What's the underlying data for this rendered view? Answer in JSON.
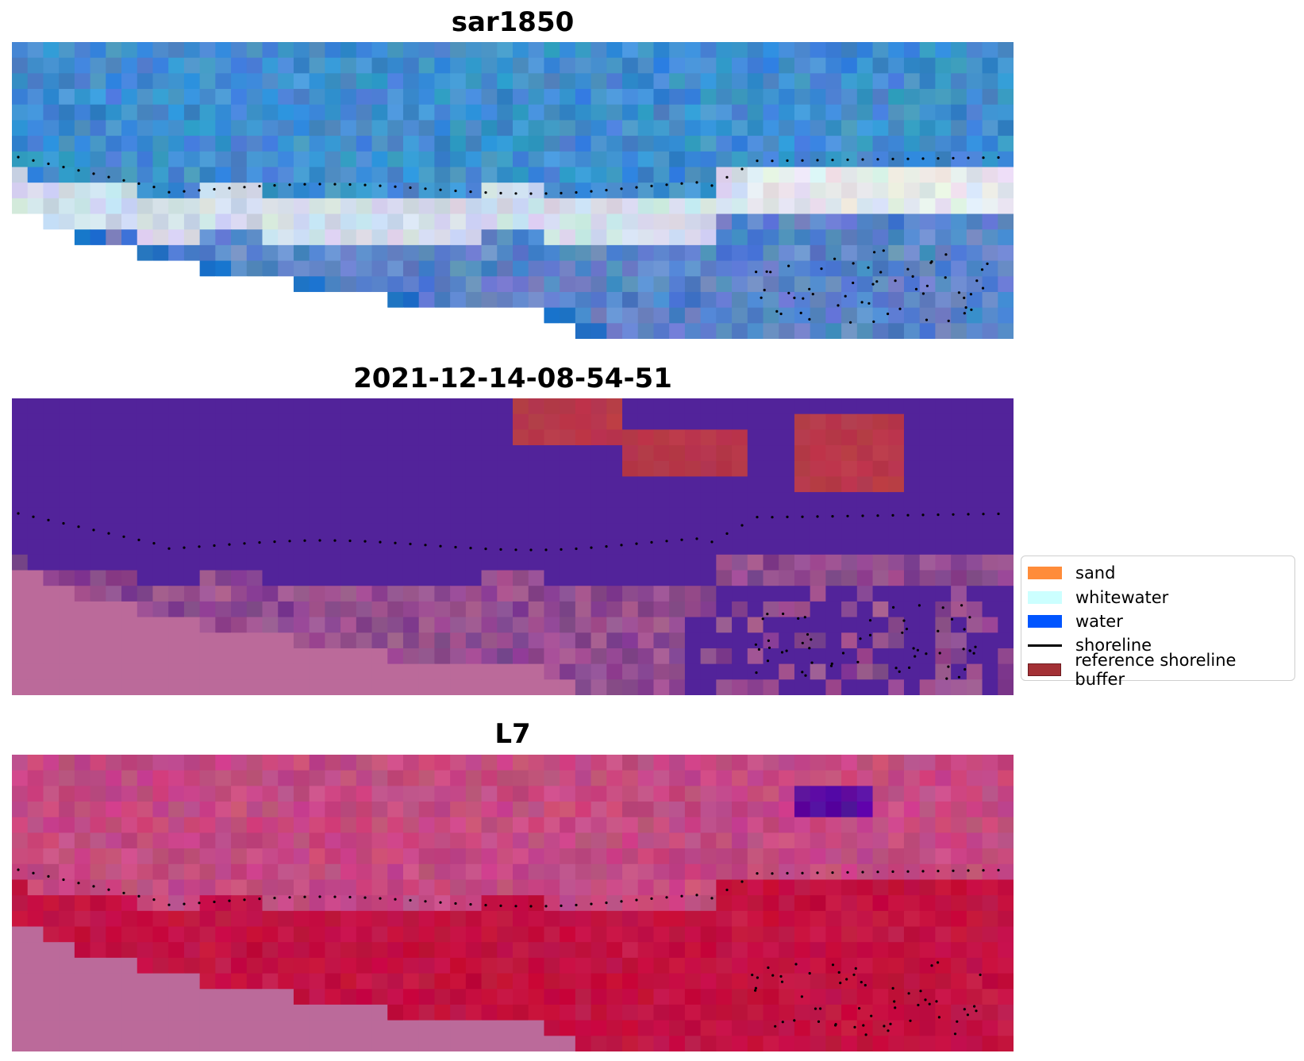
{
  "panels": [
    {
      "id": "sar",
      "title": "sar1850",
      "style": "rgb"
    },
    {
      "id": "cls",
      "title": "2021-12-14-08-54-51",
      "style": "classified"
    },
    {
      "id": "ndwi",
      "title": "L7",
      "style": "index"
    }
  ],
  "legend": {
    "items": [
      {
        "label": "sand",
        "kind": "patch",
        "color": "#ff8c3a"
      },
      {
        "label": "whitewater",
        "kind": "patch",
        "color": "#ccffff"
      },
      {
        "label": "water",
        "kind": "patch",
        "color": "#0055ff"
      },
      {
        "label": "shoreline",
        "kind": "line",
        "color": "#000000"
      },
      {
        "label": "reference shoreline buffer",
        "kind": "patch",
        "color": "#a33035",
        "edge": "#6d1b1f"
      }
    ]
  },
  "colors": {
    "nodata": "#ffffff",
    "sand_buffer_overlay": "#bb6a9a",
    "class_water": "#52239a",
    "class_buffer": "#b8384a",
    "ndwi_high": "#c20a38",
    "ndwi_mid": "#c54a82",
    "ndwi_low": "#5a0aa0",
    "shoreline_dots": "#000000"
  }
}
